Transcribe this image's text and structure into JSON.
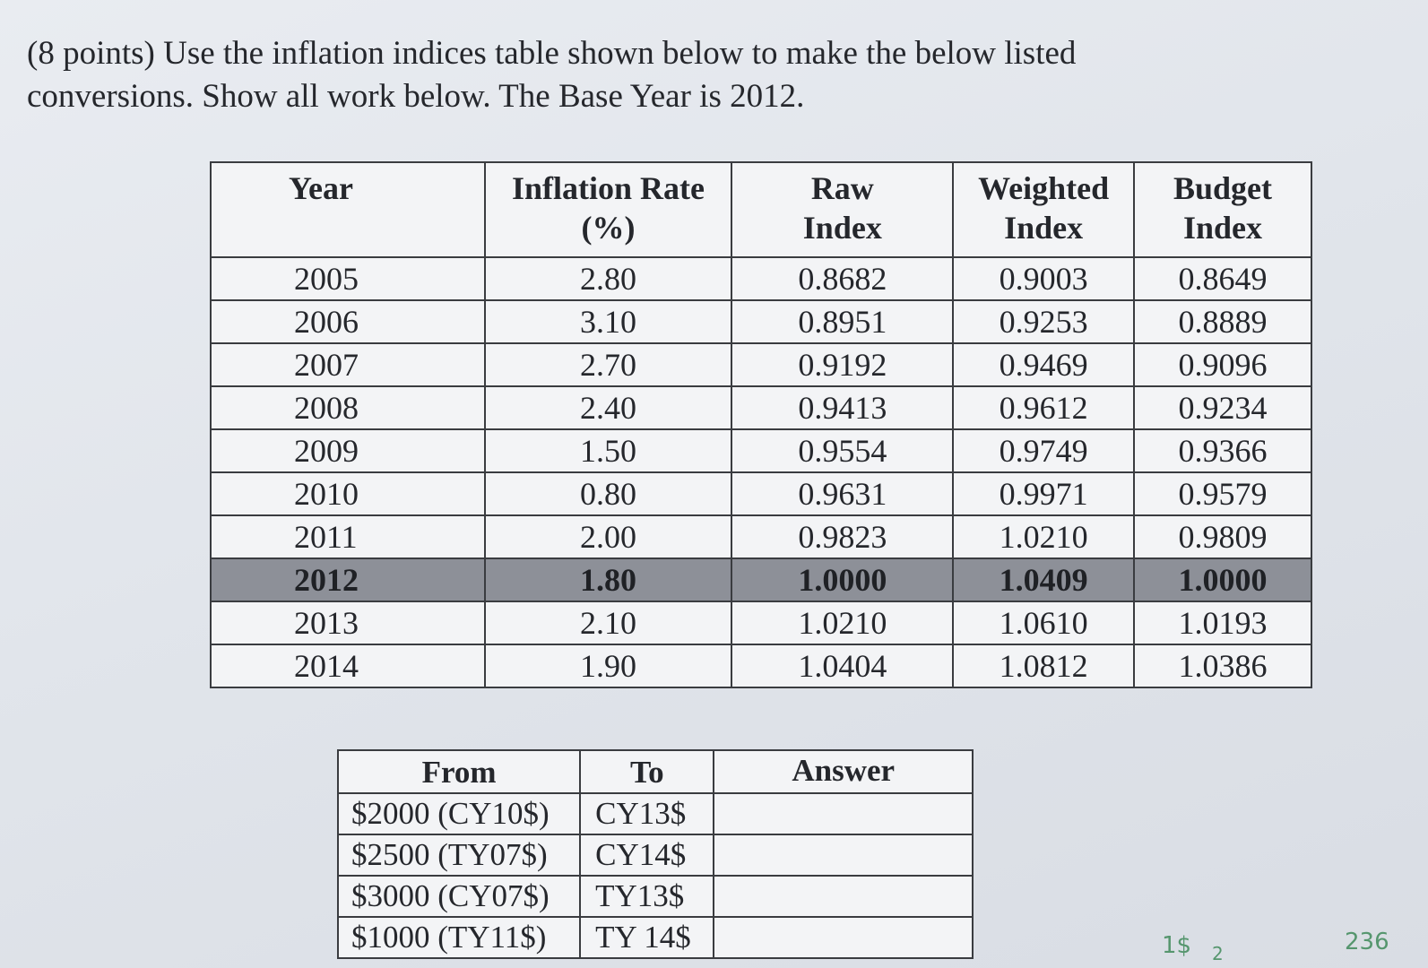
{
  "question": {
    "text": "(8 points) Use the inflation indices table shown below to make the below listed conversions. Show all work below. The Base Year is 2012."
  },
  "indices_table": {
    "headers": {
      "year": "Year",
      "rate_line1": "Inflation Rate",
      "rate_line2": "(%)",
      "raw_line1": "Raw",
      "raw_line2": "Index",
      "weighted_line1": "Weighted",
      "weighted_line2": "Index",
      "budget_line1": "Budget",
      "budget_line2": "Index"
    },
    "rows": [
      {
        "year": "2005",
        "rate": "2.80",
        "raw": "0.8682",
        "weighted": "0.9003",
        "budget": "0.8649"
      },
      {
        "year": "2006",
        "rate": "3.10",
        "raw": "0.8951",
        "weighted": "0.9253",
        "budget": "0.8889"
      },
      {
        "year": "2007",
        "rate": "2.70",
        "raw": "0.9192",
        "weighted": "0.9469",
        "budget": "0.9096"
      },
      {
        "year": "2008",
        "rate": "2.40",
        "raw": "0.9413",
        "weighted": "0.9612",
        "budget": "0.9234"
      },
      {
        "year": "2009",
        "rate": "1.50",
        "raw": "0.9554",
        "weighted": "0.9749",
        "budget": "0.9366"
      },
      {
        "year": "2010",
        "rate": "0.80",
        "raw": "0.9631",
        "weighted": "0.9971",
        "budget": "0.9579"
      },
      {
        "year": "2011",
        "rate": "2.00",
        "raw": "0.9823",
        "weighted": "1.0210",
        "budget": "0.9809"
      },
      {
        "year": "2012",
        "rate": "1.80",
        "raw": "1.0000",
        "weighted": "1.0409",
        "budget": "1.0000"
      },
      {
        "year": "2013",
        "rate": "2.10",
        "raw": "1.0210",
        "weighted": "1.0610",
        "budget": "1.0193"
      },
      {
        "year": "2014",
        "rate": "1.90",
        "raw": "1.0404",
        "weighted": "1.0812",
        "budget": "1.0386"
      }
    ],
    "highlight_color": "#8d9098"
  },
  "conversion_table": {
    "headers": {
      "from": "From",
      "to": "To",
      "answer": "Answer"
    },
    "rows": [
      {
        "from": "$2000 (CY10$)",
        "to": "CY13$",
        "answer": ""
      },
      {
        "from": "$2500 (TY07$)",
        "to": "CY14$",
        "answer": ""
      },
      {
        "from": "$3000 (CY07$)",
        "to": "TY13$",
        "answer": ""
      },
      {
        "from": "$1000 (TY11$)",
        "to": "TY 14$",
        "answer": ""
      }
    ]
  },
  "pencil_marks": [
    "1$",
    "236",
    "2"
  ]
}
